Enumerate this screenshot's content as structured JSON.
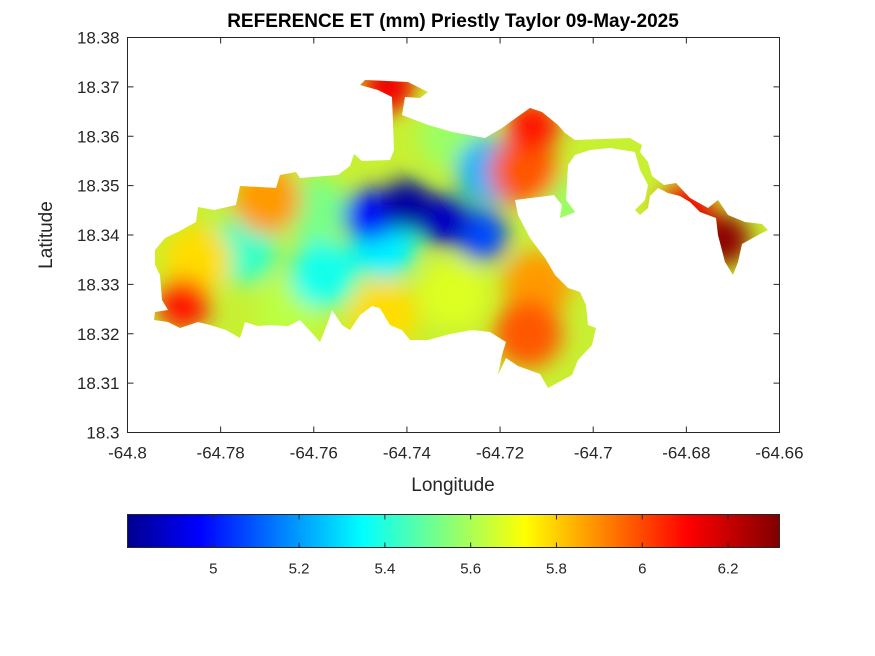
{
  "chart_data": {
    "type": "heatmap",
    "title": "REFERENCE ET (mm) Priestly Taylor 09-May-2025",
    "xlabel": "Longitude",
    "ylabel": "Latitude",
    "xlim": [
      -64.8,
      -64.66
    ],
    "ylim": [
      18.3,
      18.38
    ],
    "xticks": [
      "-64.8",
      "-64.78",
      "-64.76",
      "-64.74",
      "-64.72",
      "-64.7",
      "-64.68",
      "-64.66"
    ],
    "yticks": [
      "18.3",
      "18.31",
      "18.32",
      "18.33",
      "18.34",
      "18.35",
      "18.36",
      "18.37",
      "18.38"
    ],
    "grid": false,
    "colormap": "jet",
    "colorbar": {
      "placement": "bottom",
      "range": [
        4.8,
        6.32
      ],
      "ticks": [
        "5",
        "5.2",
        "5.4",
        "5.6",
        "5.8",
        "6",
        "6.2"
      ]
    },
    "samples": [
      {
        "lon": -64.74,
        "lat": 18.346,
        "value": 4.85
      },
      {
        "lon": -64.732,
        "lat": 18.343,
        "value": 4.9
      },
      {
        "lon": -64.748,
        "lat": 18.344,
        "value": 5.0
      },
      {
        "lon": -64.724,
        "lat": 18.34,
        "value": 5.1
      },
      {
        "lon": -64.722,
        "lat": 18.353,
        "value": 5.25
      },
      {
        "lon": -64.745,
        "lat": 18.338,
        "value": 5.35
      },
      {
        "lon": -64.758,
        "lat": 18.332,
        "value": 5.4
      },
      {
        "lon": -64.775,
        "lat": 18.337,
        "value": 5.45
      },
      {
        "lon": -64.76,
        "lat": 18.345,
        "value": 5.55
      },
      {
        "lon": -64.73,
        "lat": 18.36,
        "value": 5.6
      },
      {
        "lon": -64.705,
        "lat": 18.345,
        "value": 5.6
      },
      {
        "lon": -64.765,
        "lat": 18.325,
        "value": 5.65
      },
      {
        "lon": -64.73,
        "lat": 18.328,
        "value": 5.7
      },
      {
        "lon": -64.745,
        "lat": 18.324,
        "value": 5.8
      },
      {
        "lon": -64.785,
        "lat": 18.335,
        "value": 5.8
      },
      {
        "lon": -64.77,
        "lat": 18.347,
        "value": 5.9
      },
      {
        "lon": -64.712,
        "lat": 18.33,
        "value": 5.9
      },
      {
        "lon": -64.715,
        "lat": 18.353,
        "value": 6.0
      },
      {
        "lon": -64.714,
        "lat": 18.32,
        "value": 6.0
      },
      {
        "lon": -64.788,
        "lat": 18.326,
        "value": 6.1
      },
      {
        "lon": -64.713,
        "lat": 18.362,
        "value": 6.1
      },
      {
        "lon": -64.744,
        "lat": 18.37,
        "value": 6.15
      },
      {
        "lon": -64.68,
        "lat": 18.345,
        "value": 6.15
      },
      {
        "lon": -64.672,
        "lat": 18.339,
        "value": 6.3
      }
    ]
  }
}
